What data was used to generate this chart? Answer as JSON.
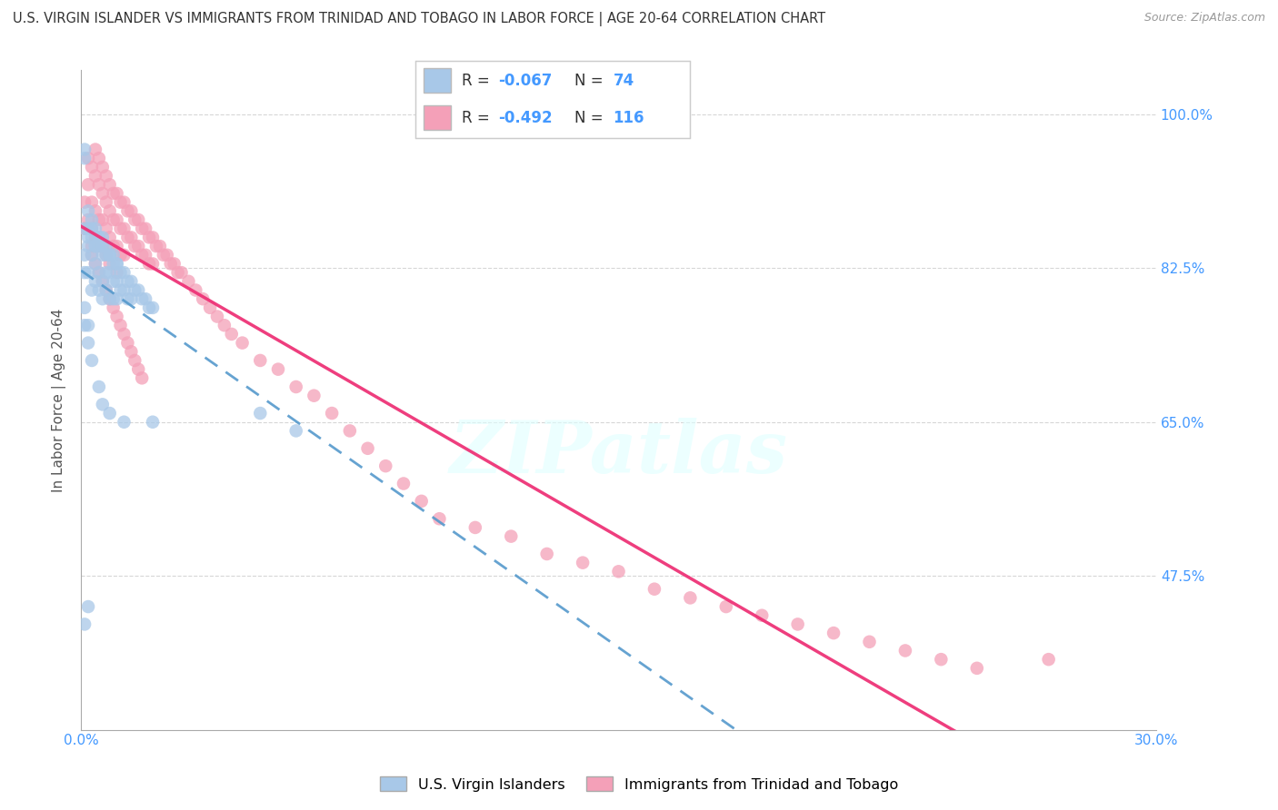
{
  "title": "U.S. VIRGIN ISLANDER VS IMMIGRANTS FROM TRINIDAD AND TOBAGO IN LABOR FORCE | AGE 20-64 CORRELATION CHART",
  "source": "Source: ZipAtlas.com",
  "ylabel": "In Labor Force | Age 20-64",
  "xlim": [
    0.0,
    0.3
  ],
  "ylim": [
    0.3,
    1.05
  ],
  "blue_R": -0.067,
  "blue_N": 74,
  "pink_R": -0.492,
  "pink_N": 116,
  "blue_color": "#a8c8e8",
  "pink_color": "#f4a0b8",
  "blue_line_color": "#5599cc",
  "pink_line_color": "#ee3377",
  "watermark": "ZIPatlas",
  "legend_label_blue": "U.S. Virgin Islanders",
  "legend_label_pink": "Immigrants from Trinidad and Tobago",
  "blue_scatter_x": [
    0.001,
    0.001,
    0.001,
    0.001,
    0.002,
    0.002,
    0.002,
    0.002,
    0.003,
    0.003,
    0.003,
    0.003,
    0.004,
    0.004,
    0.004,
    0.004,
    0.005,
    0.005,
    0.005,
    0.005,
    0.006,
    0.006,
    0.006,
    0.006,
    0.007,
    0.007,
    0.007,
    0.008,
    0.008,
    0.008,
    0.009,
    0.009,
    0.009,
    0.01,
    0.01,
    0.01,
    0.011,
    0.011,
    0.012,
    0.012,
    0.013,
    0.013,
    0.014,
    0.014,
    0.015,
    0.016,
    0.017,
    0.018,
    0.019,
    0.02,
    0.001,
    0.002,
    0.003,
    0.004,
    0.005,
    0.006,
    0.007,
    0.008,
    0.009,
    0.01,
    0.001,
    0.001,
    0.002,
    0.002,
    0.003,
    0.005,
    0.006,
    0.008,
    0.012,
    0.02,
    0.05,
    0.06,
    0.001,
    0.002
  ],
  "blue_scatter_y": [
    0.95,
    0.96,
    0.82,
    0.84,
    0.87,
    0.89,
    0.82,
    0.86,
    0.88,
    0.84,
    0.86,
    0.8,
    0.85,
    0.87,
    0.83,
    0.81,
    0.85,
    0.86,
    0.82,
    0.8,
    0.84,
    0.86,
    0.81,
    0.79,
    0.84,
    0.82,
    0.8,
    0.84,
    0.82,
    0.79,
    0.83,
    0.81,
    0.79,
    0.83,
    0.81,
    0.79,
    0.82,
    0.8,
    0.82,
    0.8,
    0.81,
    0.79,
    0.81,
    0.79,
    0.8,
    0.8,
    0.79,
    0.79,
    0.78,
    0.78,
    0.87,
    0.85,
    0.87,
    0.85,
    0.86,
    0.85,
    0.85,
    0.84,
    0.84,
    0.83,
    0.78,
    0.76,
    0.76,
    0.74,
    0.72,
    0.69,
    0.67,
    0.66,
    0.65,
    0.65,
    0.66,
    0.64,
    0.42,
    0.44
  ],
  "pink_scatter_x": [
    0.001,
    0.001,
    0.002,
    0.002,
    0.002,
    0.003,
    0.003,
    0.003,
    0.003,
    0.004,
    0.004,
    0.004,
    0.004,
    0.005,
    0.005,
    0.005,
    0.005,
    0.006,
    0.006,
    0.006,
    0.006,
    0.007,
    0.007,
    0.007,
    0.007,
    0.008,
    0.008,
    0.008,
    0.008,
    0.009,
    0.009,
    0.009,
    0.01,
    0.01,
    0.01,
    0.01,
    0.011,
    0.011,
    0.011,
    0.012,
    0.012,
    0.012,
    0.013,
    0.013,
    0.014,
    0.014,
    0.015,
    0.015,
    0.016,
    0.016,
    0.017,
    0.017,
    0.018,
    0.018,
    0.019,
    0.019,
    0.02,
    0.02,
    0.021,
    0.022,
    0.023,
    0.024,
    0.025,
    0.026,
    0.027,
    0.028,
    0.03,
    0.032,
    0.034,
    0.036,
    0.038,
    0.04,
    0.042,
    0.045,
    0.05,
    0.055,
    0.06,
    0.065,
    0.07,
    0.075,
    0.08,
    0.085,
    0.09,
    0.095,
    0.1,
    0.11,
    0.12,
    0.13,
    0.14,
    0.15,
    0.16,
    0.17,
    0.18,
    0.19,
    0.2,
    0.21,
    0.22,
    0.23,
    0.24,
    0.25,
    0.003,
    0.004,
    0.005,
    0.006,
    0.007,
    0.008,
    0.009,
    0.01,
    0.011,
    0.012,
    0.013,
    0.014,
    0.015,
    0.016,
    0.017,
    0.27
  ],
  "pink_scatter_y": [
    0.87,
    0.9,
    0.92,
    0.88,
    0.95,
    0.94,
    0.9,
    0.87,
    0.85,
    0.96,
    0.93,
    0.89,
    0.86,
    0.95,
    0.92,
    0.88,
    0.85,
    0.94,
    0.91,
    0.88,
    0.85,
    0.93,
    0.9,
    0.87,
    0.84,
    0.92,
    0.89,
    0.86,
    0.83,
    0.91,
    0.88,
    0.85,
    0.91,
    0.88,
    0.85,
    0.82,
    0.9,
    0.87,
    0.84,
    0.9,
    0.87,
    0.84,
    0.89,
    0.86,
    0.89,
    0.86,
    0.88,
    0.85,
    0.88,
    0.85,
    0.87,
    0.84,
    0.87,
    0.84,
    0.86,
    0.83,
    0.86,
    0.83,
    0.85,
    0.85,
    0.84,
    0.84,
    0.83,
    0.83,
    0.82,
    0.82,
    0.81,
    0.8,
    0.79,
    0.78,
    0.77,
    0.76,
    0.75,
    0.74,
    0.72,
    0.71,
    0.69,
    0.68,
    0.66,
    0.64,
    0.62,
    0.6,
    0.58,
    0.56,
    0.54,
    0.53,
    0.52,
    0.5,
    0.49,
    0.48,
    0.46,
    0.45,
    0.44,
    0.43,
    0.42,
    0.41,
    0.4,
    0.39,
    0.38,
    0.37,
    0.84,
    0.83,
    0.82,
    0.81,
    0.8,
    0.79,
    0.78,
    0.77,
    0.76,
    0.75,
    0.74,
    0.73,
    0.72,
    0.71,
    0.7,
    0.38
  ]
}
